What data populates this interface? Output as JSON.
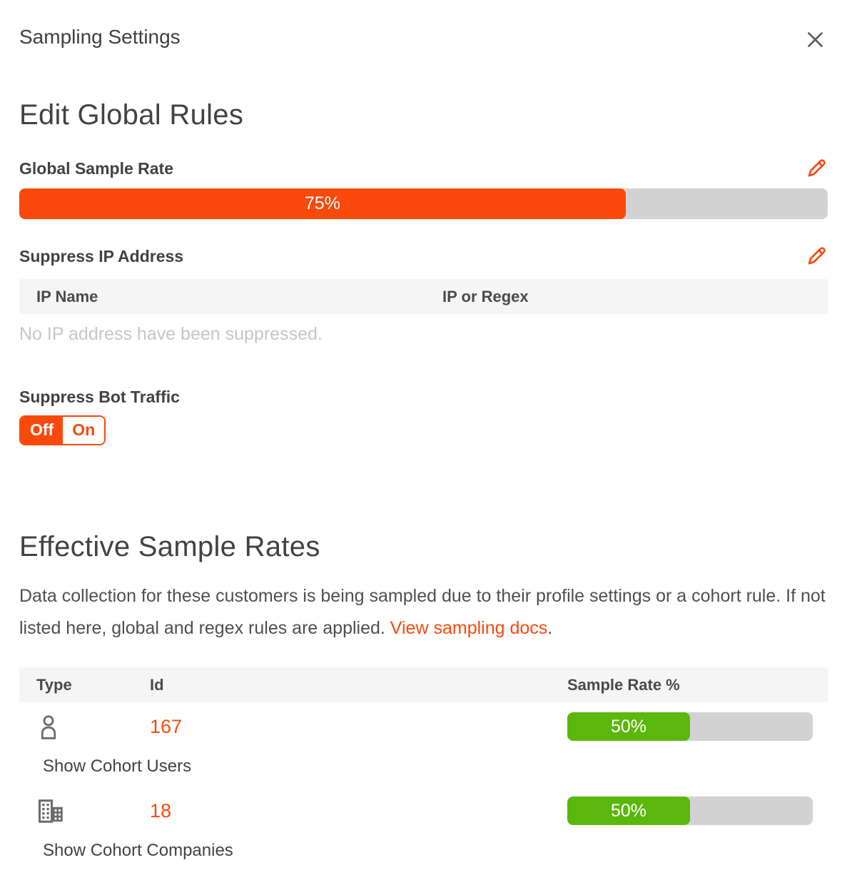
{
  "colors": {
    "accent_orange": "#f9490c",
    "bar_green": "#5bb70b",
    "bar_track_gray": "#d2d2d2",
    "header_band_gray": "#f5f5f5",
    "text_dark": "#424242",
    "empty_text_gray": "#c6c6c6"
  },
  "header": {
    "title": "Sampling Settings",
    "close_icon": "x-icon"
  },
  "global_rules": {
    "heading": "Edit Global Rules",
    "sample_rate": {
      "label": "Global Sample Rate",
      "value": "75%",
      "percent": 75,
      "edit_icon": "pencil-icon"
    },
    "suppress_ip": {
      "label": "Suppress IP Address",
      "edit_icon": "pencil-icon",
      "columns": [
        "IP Name",
        "IP or Regex"
      ],
      "empty": "No IP address have been suppressed."
    },
    "bot_traffic": {
      "label": "Suppress Bot Traffic",
      "off": "Off",
      "on": "On",
      "selected": "Off"
    }
  },
  "effective": {
    "heading": "Effective Sample Rates",
    "description": "Data collection for these customers is being sampled due to their profile settings or a cohort rule. If not listed here, global and regex rules are applied. ",
    "link": "View sampling docs",
    "link_suffix": ".",
    "columns": [
      "Type",
      "Id",
      "Sample Rate %"
    ],
    "rows": [
      {
        "type_icon": "user-icon",
        "id": "167",
        "rate": "50%",
        "percent": 50,
        "cohort_link": "Show Cohort Users"
      },
      {
        "type_icon": "building-icon",
        "id": "18",
        "rate": "50%",
        "percent": 50,
        "cohort_link": "Show Cohort Companies"
      }
    ]
  }
}
